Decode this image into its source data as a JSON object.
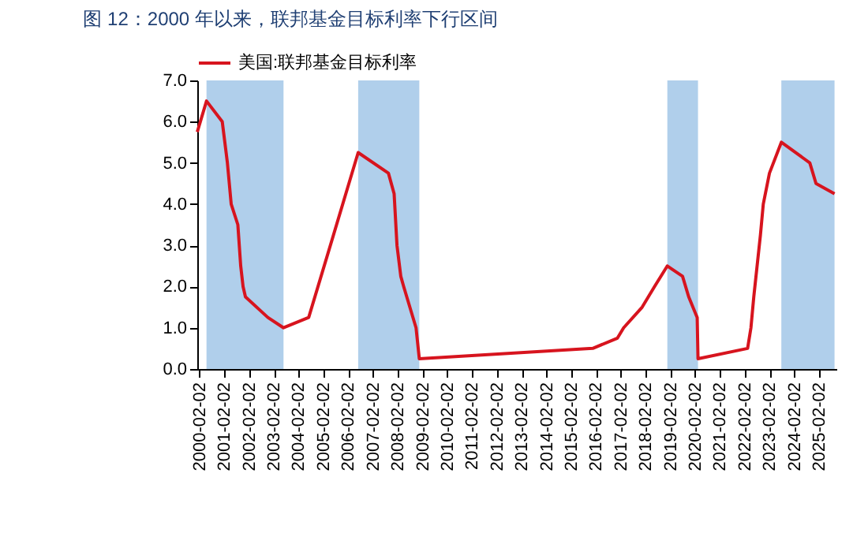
{
  "chart_data": {
    "type": "line",
    "title": "图 12：2000 年以来，联邦基金目标利率下行区间",
    "x": [
      "2000-01-01",
      "2000-05-16",
      "2001-01-03",
      "2001-03-20",
      "2001-05-15",
      "2001-08-21",
      "2001-10-02",
      "2001-11-06",
      "2001-12-11",
      "2002-11-06",
      "2003-06-25",
      "2004-06-30",
      "2005-06-30",
      "2006-06-29",
      "2007-09-18",
      "2007-12-11",
      "2008-01-22",
      "2008-03-18",
      "2008-04-30",
      "2008-10-29",
      "2008-12-16",
      "2015-12-16",
      "2016-12-14",
      "2017-03-15",
      "2017-12-13",
      "2018-06-13",
      "2018-12-19",
      "2019-07-31",
      "2019-10-30",
      "2020-03-03",
      "2020-03-15",
      "2022-03-16",
      "2022-05-04",
      "2022-06-15",
      "2022-09-21",
      "2022-11-02",
      "2023-02-01",
      "2023-07-26",
      "2024-09-18",
      "2024-12-18",
      "2025-09-17"
    ],
    "series": [
      {
        "name": "美国:联邦基金目标利率",
        "color": "#d7141e",
        "values": [
          5.75,
          6.5,
          6.0,
          5.0,
          4.0,
          3.5,
          2.5,
          2.0,
          1.75,
          1.25,
          1.0,
          1.25,
          3.25,
          5.25,
          4.75,
          4.25,
          3.0,
          2.25,
          2.0,
          1.0,
          0.25,
          0.5,
          0.75,
          1.0,
          1.5,
          2.0,
          2.5,
          2.25,
          1.75,
          1.25,
          0.25,
          0.5,
          1.0,
          1.75,
          3.25,
          4.0,
          4.75,
          5.5,
          5.0,
          4.5,
          4.25
        ]
      }
    ],
    "xlim": [
      "2000-01-01",
      "2025-10-15"
    ],
    "xticks": [
      "2000-02-02",
      "2001-02-02",
      "2002-02-02",
      "2003-02-02",
      "2004-02-02",
      "2005-02-02",
      "2006-02-02",
      "2007-02-02",
      "2008-02-02",
      "2009-02-02",
      "2010-02-02",
      "2011-02-02",
      "2012-02-02",
      "2013-02-02",
      "2014-02-02",
      "2015-02-02",
      "2016-02-02",
      "2017-02-02",
      "2018-02-02",
      "2019-02-02",
      "2020-02-02",
      "2021-02-02",
      "2022-02-02",
      "2023-02-02",
      "2024-02-02",
      "2025-02-02"
    ],
    "ylim": [
      0,
      7
    ],
    "yticks": [
      {
        "value": 0,
        "label": "0.0"
      },
      {
        "value": 1,
        "label": "1.0"
      },
      {
        "value": 2,
        "label": "2.0"
      },
      {
        "value": 3,
        "label": "3.0"
      },
      {
        "value": 4,
        "label": "4.0"
      },
      {
        "value": 5,
        "label": "5.0"
      },
      {
        "value": 6,
        "label": "6.0"
      },
      {
        "value": 7,
        "label": "7.0"
      }
    ],
    "bands": [
      {
        "axis": "x",
        "from": "2000-05-16",
        "to": "2003-06-25",
        "color": "#b0cfeb"
      },
      {
        "axis": "x",
        "from": "2006-06-29",
        "to": "2008-12-16",
        "color": "#b0cfeb"
      },
      {
        "axis": "x",
        "from": "2018-12-19",
        "to": "2020-03-15",
        "color": "#b0cfeb"
      },
      {
        "axis": "x",
        "from": "2023-07-26",
        "to": "2025-09-17",
        "color": "#b0cfeb"
      }
    ],
    "legend": "top",
    "grid": false,
    "marker": "none",
    "line_style": "solid"
  }
}
